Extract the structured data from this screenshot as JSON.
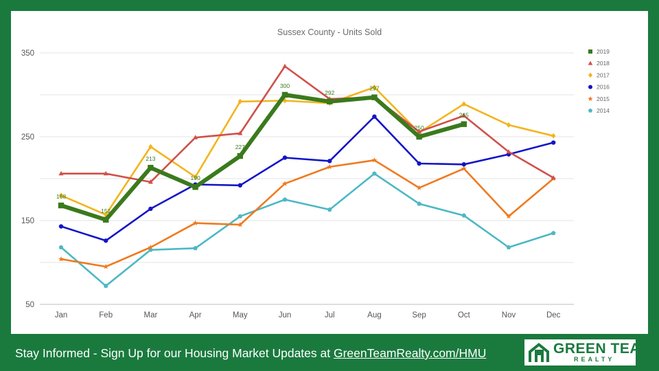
{
  "chart_data": {
    "type": "line",
    "title": "Sussex County - Units Sold",
    "categories": [
      "Jan",
      "Feb",
      "Mar",
      "Apr",
      "May",
      "Jun",
      "Jul",
      "Aug",
      "Sep",
      "Oct",
      "Nov",
      "Dec"
    ],
    "ylim": [
      50,
      350
    ],
    "yticks": [
      50,
      150,
      250,
      350
    ],
    "grid": true,
    "legend_position": "right",
    "series": [
      {
        "name": "2014",
        "color": "#4cb8c4",
        "marker": "pentagon",
        "values": [
          118,
          72,
          115,
          117,
          155,
          175,
          163,
          206,
          170,
          156,
          118,
          135
        ]
      },
      {
        "name": "2015",
        "color": "#ef7a1f",
        "marker": "star",
        "values": [
          104,
          95,
          118,
          147,
          145,
          194,
          214,
          222,
          189,
          212,
          155,
          200
        ]
      },
      {
        "name": "2016",
        "color": "#1414c8",
        "marker": "circle",
        "values": [
          143,
          126,
          164,
          193,
          192,
          225,
          221,
          274,
          218,
          217,
          229,
          243
        ]
      },
      {
        "name": "2017",
        "color": "#f2b51e",
        "marker": "diamond",
        "values": [
          180,
          157,
          238,
          202,
          292,
          293,
          290,
          309,
          255,
          289,
          264,
          251
        ]
      },
      {
        "name": "2018",
        "color": "#d0504a",
        "marker": "triangle",
        "values": [
          206,
          206,
          196,
          249,
          254,
          334,
          295,
          297,
          256,
          275,
          232,
          201
        ]
      },
      {
        "name": "2019",
        "color": "#3a7a1c",
        "marker": "square",
        "bold": true,
        "values": [
          168,
          151,
          213,
          190,
          227,
          300,
          292,
          297,
          250,
          265,
          null,
          null
        ],
        "data_labels": [
          "168",
          "151",
          "213",
          "190",
          "227",
          "300",
          "292",
          "297",
          "250",
          "265"
        ]
      }
    ],
    "legend_order": [
      "2019",
      "2018",
      "2017",
      "2016",
      "2015",
      "2014"
    ]
  },
  "footer": {
    "prefix": "Stay Informed - Sign Up for our Housing Market Updates at ",
    "link": "GreenTeamRealty.com/HMU"
  },
  "logo": {
    "name": "GREEN TEAM",
    "sub": "REALTY"
  }
}
